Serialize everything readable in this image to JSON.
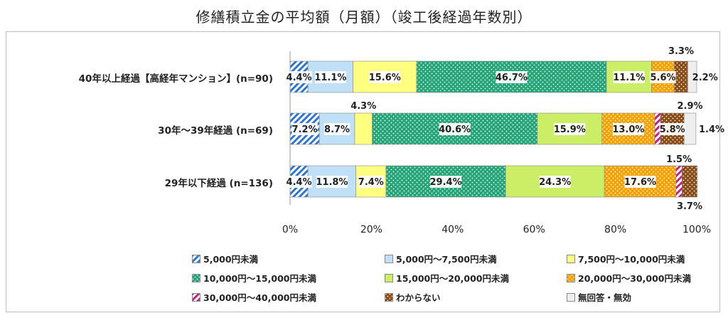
{
  "chart_data": {
    "type": "bar",
    "stacked": true,
    "orientation": "horizontal",
    "title": "修繕積立金の平均額（月額）（竣工後経過年数別）",
    "categories": [
      "40年以上経過【高経年マンション】(n=90)",
      "30年～39年経過 (n=69)",
      "29年以下経過 (n=136)"
    ],
    "series": [
      {
        "name": "5,000円未満",
        "values": [
          4.4,
          7.2,
          4.4
        ],
        "color": "#2e75d0",
        "pattern": "diag"
      },
      {
        "name": "5,000円～7,500円未満",
        "values": [
          11.1,
          8.7,
          11.8
        ],
        "color": "#bfe0f7",
        "pattern": "solid"
      },
      {
        "name": "7,500円～10,000円未満",
        "values": [
          15.6,
          4.3,
          7.4
        ],
        "color": "#ffff80",
        "pattern": "solid"
      },
      {
        "name": "10,000円～15,000円未満",
        "values": [
          46.7,
          40.6,
          29.4
        ],
        "color": "#22a678",
        "pattern": "dots"
      },
      {
        "name": "15,000円～20,000円未満",
        "values": [
          11.1,
          15.9,
          24.3
        ],
        "color": "#ccee66",
        "pattern": "solid"
      },
      {
        "name": "20,000円～30,000円未満",
        "values": [
          5.6,
          13.0,
          17.6
        ],
        "color": "#f5a200",
        "pattern": "dots"
      },
      {
        "name": "30,000円～40,000円未満",
        "values": [
          0,
          1.4,
          1.5
        ],
        "color": "#c0208a",
        "pattern": "diag"
      },
      {
        "name": "わからない",
        "values": [
          3.3,
          5.8,
          3.7
        ],
        "color": "#8a4a14",
        "pattern": "dots"
      },
      {
        "name": "無回答・無効",
        "values": [
          2.2,
          2.9,
          0
        ],
        "color": "#eeeeee",
        "pattern": "solid"
      }
    ],
    "data_labels": [
      [
        "4.4%",
        "11.1%",
        "15.6%",
        "46.7%",
        "11.1%",
        "5.6%",
        "",
        "3.3%",
        "2.2%"
      ],
      [
        "7.2%",
        "8.7%",
        "4.3%",
        "40.6%",
        "15.9%",
        "13.0%",
        "1.4%",
        "5.8%",
        "2.9%"
      ],
      [
        "4.4%",
        "11.8%",
        "7.4%",
        "29.4%",
        "24.3%",
        "17.6%",
        "1.5%",
        "3.7%",
        ""
      ]
    ],
    "xlim": [
      0,
      100
    ],
    "xticks": [
      "0%",
      "20%",
      "40%",
      "60%",
      "80%",
      "100%"
    ],
    "legend_position": "bottom",
    "grid": false
  }
}
